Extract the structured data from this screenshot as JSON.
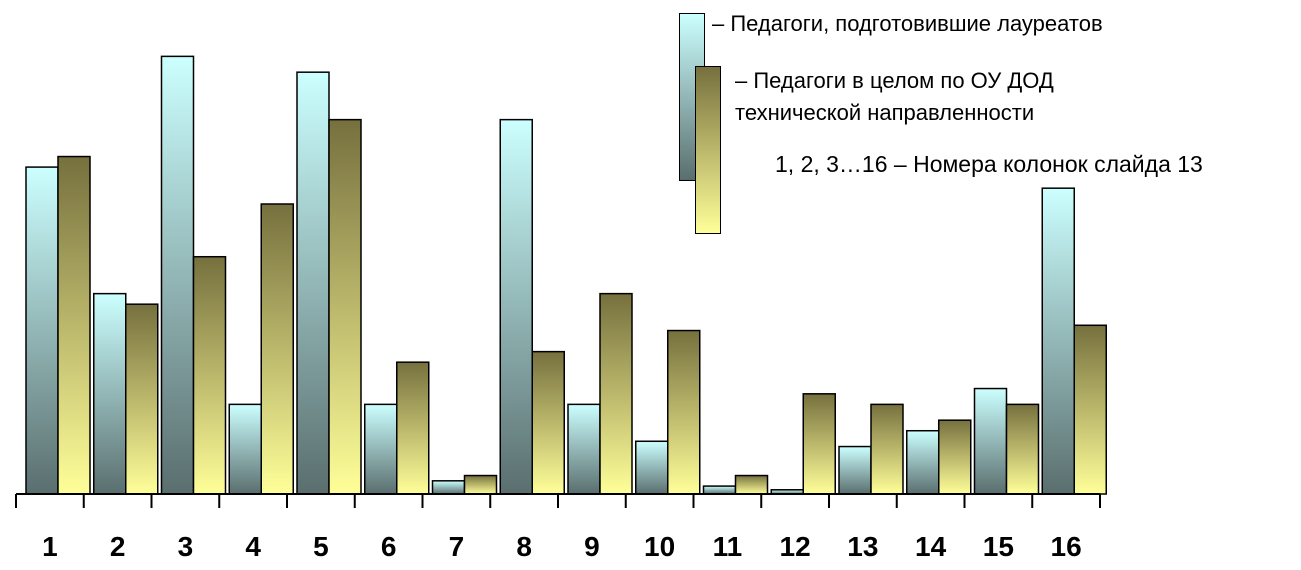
{
  "chart_data": {
    "type": "bar",
    "categories": [
      "1",
      "2",
      "3",
      "4",
      "5",
      "6",
      "7",
      "8",
      "9",
      "10",
      "11",
      "12",
      "13",
      "14",
      "15",
      "16"
    ],
    "series": [
      {
        "name": "– Педагоги, подготовившие лауреатов",
        "values": [
          62,
          38,
          83,
          17,
          80,
          17,
          2.5,
          71,
          17,
          10,
          1.5,
          0.8,
          9,
          12,
          20,
          58
        ],
        "gradient": [
          "#ccffff",
          "#5a6e6e"
        ]
      },
      {
        "name": "– Педагоги в целом по ОУ ДОД технической направленности",
        "values": [
          64,
          36,
          45,
          55,
          71,
          25,
          3.5,
          27,
          38,
          31,
          3.5,
          19,
          17,
          14,
          17,
          32
        ],
        "gradient": [
          "#76703e",
          "#ffff99"
        ]
      }
    ],
    "ylim": [
      0,
      88
    ],
    "grid": false
  },
  "legend": {
    "series1_label": "– Педагоги, подготовившие лауреатов",
    "series2_line1": "– Педагоги в целом по ОУ ДОД",
    "series2_line2": "технической направленности",
    "note": "1, 2, 3…16 – Номера колонок слайда 13"
  }
}
